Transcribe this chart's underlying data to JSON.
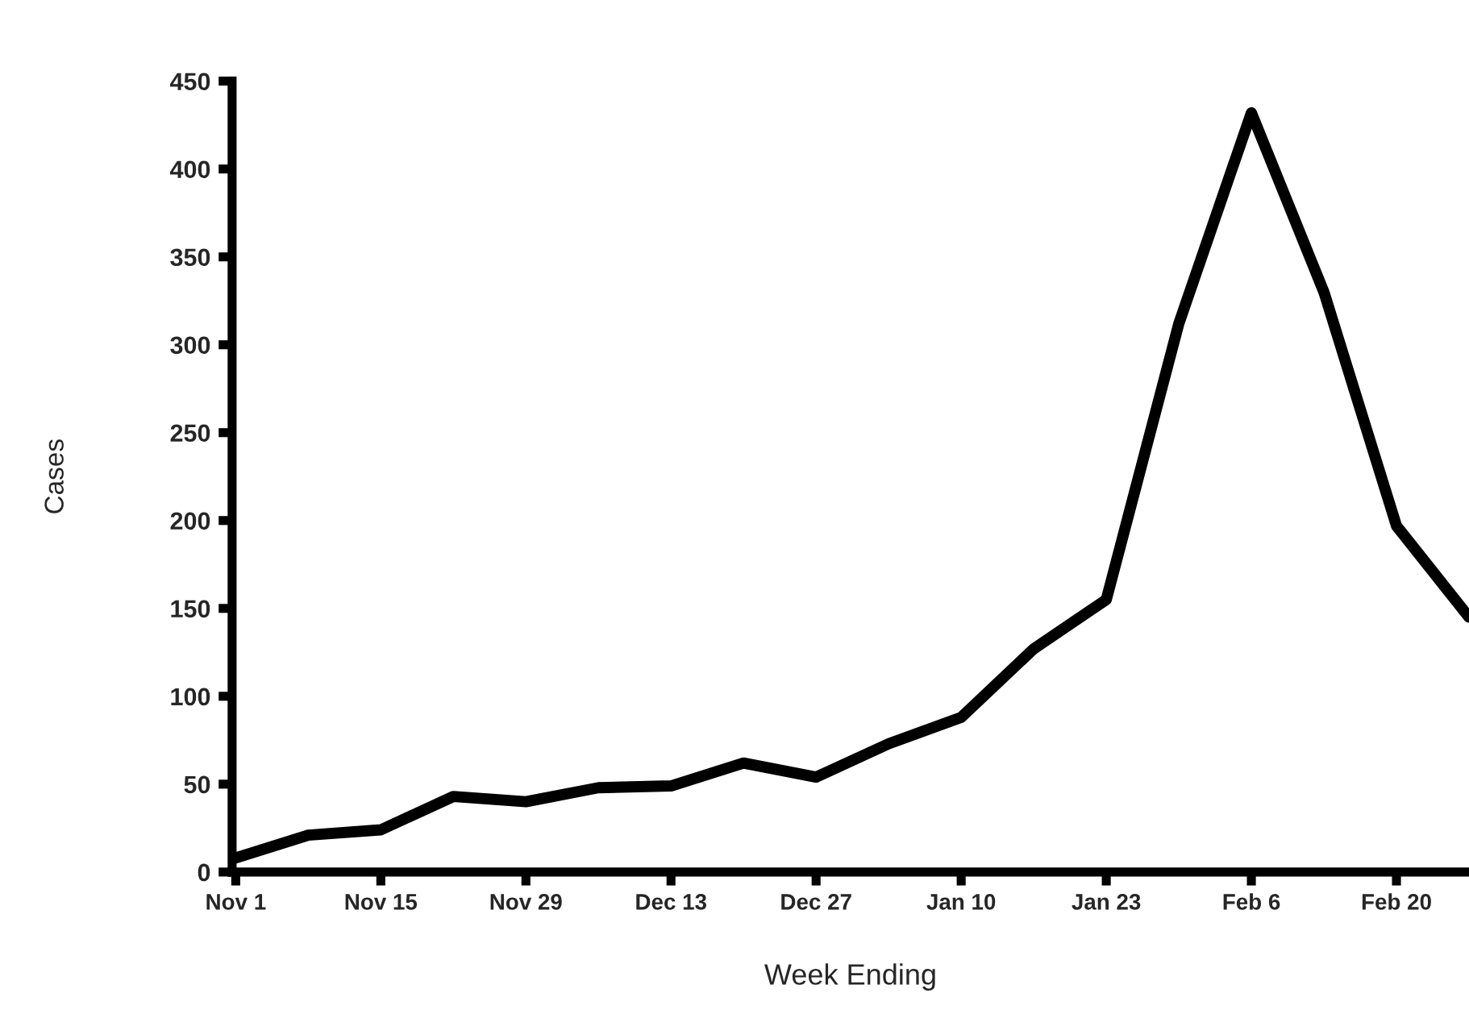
{
  "chart_data": {
    "type": "line",
    "xlabel": "Week Ending",
    "ylabel": "Cases",
    "categories": [
      "Nov 1",
      null,
      "Nov 15",
      null,
      "Nov 29",
      null,
      "Dec 13",
      null,
      "Dec 27",
      null,
      "Jan 10",
      null,
      "Jan 23",
      null,
      "Feb 6",
      null,
      "Feb 20",
      null
    ],
    "series": [
      {
        "color": "#000000",
        "values": [
          8,
          21,
          24,
          43,
          40,
          48,
          49,
          62,
          54,
          73,
          88,
          127,
          155,
          312,
          432,
          330,
          197,
          145
        ]
      }
    ],
    "ylim": [
      0,
      450
    ],
    "yticks": [
      0,
      50,
      100,
      150,
      200,
      250,
      300,
      350,
      400,
      450
    ],
    "grid": false,
    "marker": "none",
    "line_style": "solid"
  }
}
